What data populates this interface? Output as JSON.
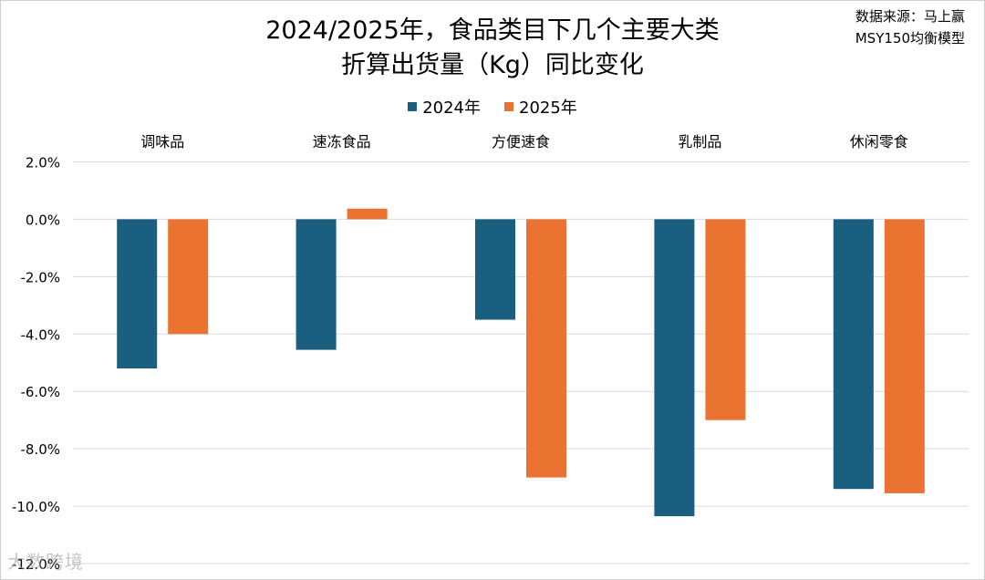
{
  "source": {
    "line1": "数据来源：马上赢",
    "line2": "MSY150均衡模型"
  },
  "watermark": "大数跨境",
  "chart_data": {
    "type": "bar",
    "title_line1": "2024/2025年，食品类目下几个主要大类",
    "title_line2": "折算出货量（Kg）同比变化",
    "categories": [
      "调味品",
      "速冻食品",
      "方便速食",
      "乳制品",
      "休闲零食"
    ],
    "series": [
      {
        "name": "2024年",
        "color": "#1a5e80",
        "values": [
          -5.2,
          -4.55,
          -3.5,
          -10.35,
          -9.4
        ]
      },
      {
        "name": "2025年",
        "color": "#eb7332",
        "values": [
          -4.0,
          0.37,
          -9.0,
          -7.0,
          -9.55
        ]
      }
    ],
    "ylim": [
      -12,
      2
    ],
    "yticks": [
      "2.0%",
      "0.0%",
      "-2.0%",
      "-4.0%",
      "-6.0%",
      "-8.0%",
      "-10.0%",
      "-12.0%"
    ],
    "category_labels_position": "top",
    "legend_position": "top",
    "grid": true
  }
}
